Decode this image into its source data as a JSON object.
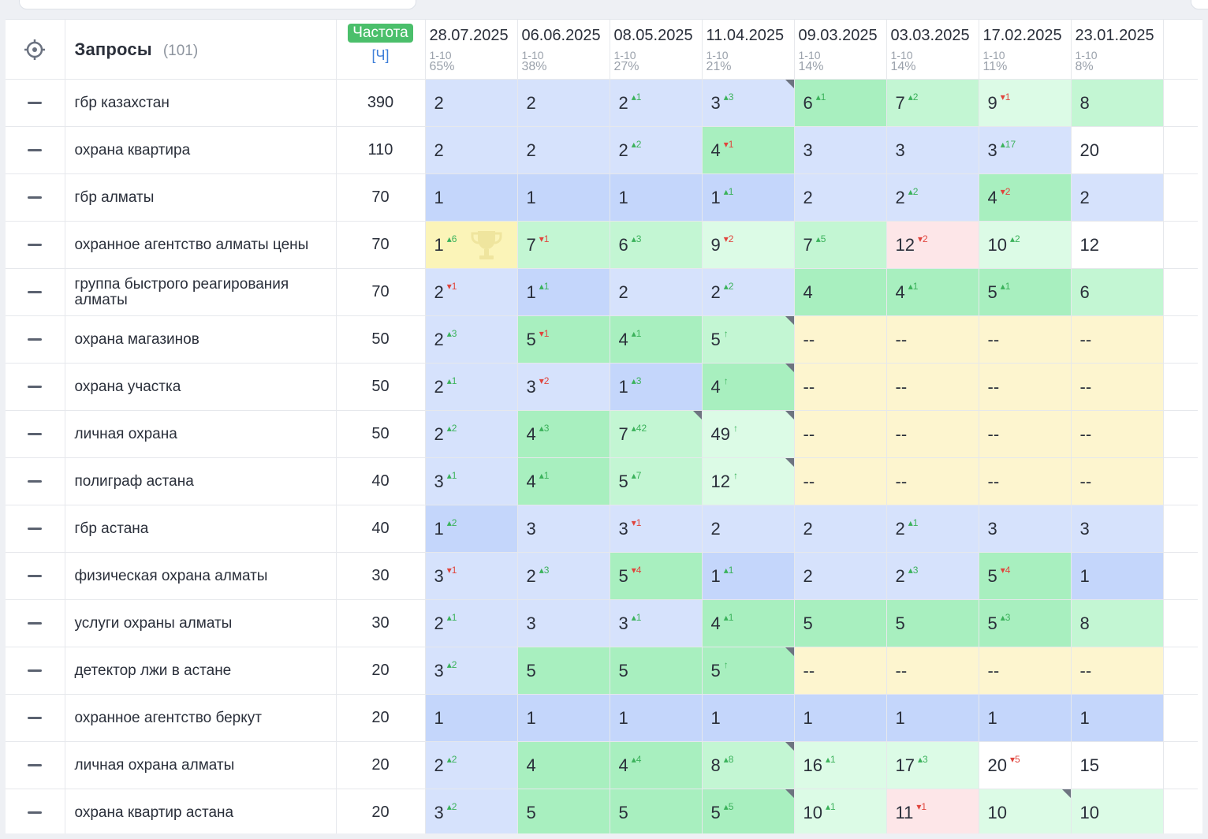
{
  "header": {
    "queries_title": "Запросы",
    "queries_count": "(101)",
    "freq_badge": "Частота",
    "freq_mode": "[Ч]"
  },
  "dates": [
    {
      "date": "28.07.2025",
      "range": "1-10",
      "pct": "65%"
    },
    {
      "date": "06.06.2025",
      "range": "1-10",
      "pct": "38%"
    },
    {
      "date": "08.05.2025",
      "range": "1-10",
      "pct": "27%"
    },
    {
      "date": "11.04.2025",
      "range": "1-10",
      "pct": "21%"
    },
    {
      "date": "09.03.2025",
      "range": "1-10",
      "pct": "14%"
    },
    {
      "date": "03.03.2025",
      "range": "1-10",
      "pct": "14%"
    },
    {
      "date": "17.02.2025",
      "range": "1-10",
      "pct": "11%"
    },
    {
      "date": "23.01.2025",
      "range": "1-10",
      "pct": "8%"
    }
  ],
  "rows": [
    {
      "query": "гбр казахстан",
      "freq": "390",
      "cells": [
        {
          "pos": "2",
          "bg": "top3"
        },
        {
          "pos": "2",
          "bg": "top3"
        },
        {
          "pos": "2",
          "d": "1",
          "dir": "up",
          "bg": "top3"
        },
        {
          "pos": "3",
          "d": "3",
          "dir": "up",
          "bg": "top3",
          "corner": true
        },
        {
          "pos": "6",
          "d": "1",
          "dir": "up",
          "bg": "top5"
        },
        {
          "pos": "7",
          "d": "2",
          "dir": "up",
          "bg": "top10"
        },
        {
          "pos": "9",
          "d": "1",
          "dir": "down",
          "bg": "top20"
        },
        {
          "pos": "8",
          "bg": "top10"
        }
      ]
    },
    {
      "query": "охрана квартира",
      "freq": "110",
      "cells": [
        {
          "pos": "2",
          "bg": "top3"
        },
        {
          "pos": "2",
          "bg": "top3"
        },
        {
          "pos": "2",
          "d": "2",
          "dir": "up",
          "bg": "top3"
        },
        {
          "pos": "4",
          "d": "1",
          "dir": "down",
          "bg": "top5"
        },
        {
          "pos": "3",
          "bg": "top3"
        },
        {
          "pos": "3",
          "bg": "top3"
        },
        {
          "pos": "3",
          "d": "17",
          "dir": "up",
          "bg": "top3"
        },
        {
          "pos": "20",
          "bg": "white"
        }
      ]
    },
    {
      "query": "гбр алматы",
      "freq": "70",
      "cells": [
        {
          "pos": "1",
          "bg": "top1"
        },
        {
          "pos": "1",
          "bg": "top1"
        },
        {
          "pos": "1",
          "bg": "top1"
        },
        {
          "pos": "1",
          "d": "1",
          "dir": "up",
          "bg": "top1"
        },
        {
          "pos": "2",
          "bg": "top3"
        },
        {
          "pos": "2",
          "d": "2",
          "dir": "up",
          "bg": "top3"
        },
        {
          "pos": "4",
          "d": "2",
          "dir": "down",
          "bg": "top5"
        },
        {
          "pos": "2",
          "bg": "top3"
        }
      ]
    },
    {
      "query": "охранное агентство алматы цены",
      "freq": "70",
      "cells": [
        {
          "pos": "1",
          "d": "6",
          "dir": "up",
          "bg": "gold",
          "trophy": true
        },
        {
          "pos": "7",
          "d": "1",
          "dir": "down",
          "bg": "top10"
        },
        {
          "pos": "6",
          "d": "3",
          "dir": "up",
          "bg": "top10"
        },
        {
          "pos": "9",
          "d": "2",
          "dir": "down",
          "bg": "top20"
        },
        {
          "pos": "7",
          "d": "5",
          "dir": "up",
          "bg": "top10"
        },
        {
          "pos": "12",
          "d": "2",
          "dir": "down",
          "bg": "bad"
        },
        {
          "pos": "10",
          "d": "2",
          "dir": "up",
          "bg": "top20"
        },
        {
          "pos": "12",
          "bg": "white"
        }
      ]
    },
    {
      "query": "группа быстрого реагирования алматы",
      "freq": "70",
      "cells": [
        {
          "pos": "2",
          "d": "1",
          "dir": "down",
          "bg": "top3"
        },
        {
          "pos": "1",
          "d": "1",
          "dir": "up",
          "bg": "top1"
        },
        {
          "pos": "2",
          "bg": "top3"
        },
        {
          "pos": "2",
          "d": "2",
          "dir": "up",
          "bg": "top3"
        },
        {
          "pos": "4",
          "bg": "top5"
        },
        {
          "pos": "4",
          "d": "1",
          "dir": "up",
          "bg": "top5"
        },
        {
          "pos": "5",
          "d": "1",
          "dir": "up",
          "bg": "top5"
        },
        {
          "pos": "6",
          "bg": "top10"
        }
      ]
    },
    {
      "query": "охрана магазинов",
      "freq": "50",
      "cells": [
        {
          "pos": "2",
          "d": "3",
          "dir": "up",
          "bg": "top3"
        },
        {
          "pos": "5",
          "d": "1",
          "dir": "down",
          "bg": "top5"
        },
        {
          "pos": "4",
          "d": "1",
          "dir": "up",
          "bg": "top5"
        },
        {
          "pos": "5",
          "d": "↑",
          "dir": "up",
          "bg": "top10",
          "corner": true
        },
        {
          "pos": "--",
          "bg": "none"
        },
        {
          "pos": "--",
          "bg": "none"
        },
        {
          "pos": "--",
          "bg": "none"
        },
        {
          "pos": "--",
          "bg": "none"
        }
      ]
    },
    {
      "query": "охрана участка",
      "freq": "50",
      "cells": [
        {
          "pos": "2",
          "d": "1",
          "dir": "up",
          "bg": "top3"
        },
        {
          "pos": "3",
          "d": "2",
          "dir": "down",
          "bg": "top3"
        },
        {
          "pos": "1",
          "d": "3",
          "dir": "up",
          "bg": "top1"
        },
        {
          "pos": "4",
          "d": "↑",
          "dir": "up",
          "bg": "top5",
          "corner": true
        },
        {
          "pos": "--",
          "bg": "none"
        },
        {
          "pos": "--",
          "bg": "none"
        },
        {
          "pos": "--",
          "bg": "none"
        },
        {
          "pos": "--",
          "bg": "none"
        }
      ]
    },
    {
      "query": "личная охрана",
      "freq": "50",
      "cells": [
        {
          "pos": "2",
          "d": "2",
          "dir": "up",
          "bg": "top3"
        },
        {
          "pos": "4",
          "d": "3",
          "dir": "up",
          "bg": "top5"
        },
        {
          "pos": "7",
          "d": "42",
          "dir": "up",
          "bg": "top10",
          "corner": true
        },
        {
          "pos": "49",
          "d": "↑",
          "dir": "up",
          "bg": "top20",
          "corner": true
        },
        {
          "pos": "--",
          "bg": "none"
        },
        {
          "pos": "--",
          "bg": "none"
        },
        {
          "pos": "--",
          "bg": "none"
        },
        {
          "pos": "--",
          "bg": "none"
        }
      ]
    },
    {
      "query": "полиграф астана",
      "freq": "40",
      "cells": [
        {
          "pos": "3",
          "d": "1",
          "dir": "up",
          "bg": "top3"
        },
        {
          "pos": "4",
          "d": "1",
          "dir": "up",
          "bg": "top5"
        },
        {
          "pos": "5",
          "d": "7",
          "dir": "up",
          "bg": "top10"
        },
        {
          "pos": "12",
          "d": "↑",
          "dir": "up",
          "bg": "top20",
          "corner": true
        },
        {
          "pos": "--",
          "bg": "none"
        },
        {
          "pos": "--",
          "bg": "none"
        },
        {
          "pos": "--",
          "bg": "none"
        },
        {
          "pos": "--",
          "bg": "none"
        }
      ]
    },
    {
      "query": "гбр астана",
      "freq": "40",
      "cells": [
        {
          "pos": "1",
          "d": "2",
          "dir": "up",
          "bg": "top1"
        },
        {
          "pos": "3",
          "bg": "top3"
        },
        {
          "pos": "3",
          "d": "1",
          "dir": "down",
          "bg": "top3"
        },
        {
          "pos": "2",
          "bg": "top3"
        },
        {
          "pos": "2",
          "bg": "top3"
        },
        {
          "pos": "2",
          "d": "1",
          "dir": "up",
          "bg": "top3"
        },
        {
          "pos": "3",
          "bg": "top3"
        },
        {
          "pos": "3",
          "bg": "top3"
        }
      ]
    },
    {
      "query": "физическая охрана алматы",
      "freq": "30",
      "cells": [
        {
          "pos": "3",
          "d": "1",
          "dir": "down",
          "bg": "top3"
        },
        {
          "pos": "2",
          "d": "3",
          "dir": "up",
          "bg": "top3"
        },
        {
          "pos": "5",
          "d": "4",
          "dir": "down",
          "bg": "top5"
        },
        {
          "pos": "1",
          "d": "1",
          "dir": "up",
          "bg": "top1"
        },
        {
          "pos": "2",
          "bg": "top3"
        },
        {
          "pos": "2",
          "d": "3",
          "dir": "up",
          "bg": "top3"
        },
        {
          "pos": "5",
          "d": "4",
          "dir": "down",
          "bg": "top5"
        },
        {
          "pos": "1",
          "bg": "top1"
        }
      ]
    },
    {
      "query": "услуги охраны алматы",
      "freq": "30",
      "cells": [
        {
          "pos": "2",
          "d": "1",
          "dir": "up",
          "bg": "top3"
        },
        {
          "pos": "3",
          "bg": "top3"
        },
        {
          "pos": "3",
          "d": "1",
          "dir": "up",
          "bg": "top3"
        },
        {
          "pos": "4",
          "d": "1",
          "dir": "up",
          "bg": "top5"
        },
        {
          "pos": "5",
          "bg": "top5"
        },
        {
          "pos": "5",
          "bg": "top5"
        },
        {
          "pos": "5",
          "d": "3",
          "dir": "up",
          "bg": "top5"
        },
        {
          "pos": "8",
          "bg": "top10"
        }
      ]
    },
    {
      "query": "детектор лжи в астане",
      "freq": "20",
      "cells": [
        {
          "pos": "3",
          "d": "2",
          "dir": "up",
          "bg": "top3"
        },
        {
          "pos": "5",
          "bg": "top5"
        },
        {
          "pos": "5",
          "bg": "top5"
        },
        {
          "pos": "5",
          "d": "↑",
          "dir": "up",
          "bg": "top5",
          "corner": true
        },
        {
          "pos": "--",
          "bg": "none"
        },
        {
          "pos": "--",
          "bg": "none"
        },
        {
          "pos": "--",
          "bg": "none"
        },
        {
          "pos": "--",
          "bg": "none"
        }
      ]
    },
    {
      "query": "охранное агентство беркут",
      "freq": "20",
      "cells": [
        {
          "pos": "1",
          "bg": "top1"
        },
        {
          "pos": "1",
          "bg": "top1"
        },
        {
          "pos": "1",
          "bg": "top1"
        },
        {
          "pos": "1",
          "bg": "top1"
        },
        {
          "pos": "1",
          "bg": "top1"
        },
        {
          "pos": "1",
          "bg": "top1"
        },
        {
          "pos": "1",
          "bg": "top1"
        },
        {
          "pos": "1",
          "bg": "top1"
        }
      ]
    },
    {
      "query": "личная охрана алматы",
      "freq": "20",
      "cells": [
        {
          "pos": "2",
          "d": "2",
          "dir": "up",
          "bg": "top3"
        },
        {
          "pos": "4",
          "bg": "top5"
        },
        {
          "pos": "4",
          "d": "4",
          "dir": "up",
          "bg": "top5"
        },
        {
          "pos": "8",
          "d": "8",
          "dir": "up",
          "bg": "top10",
          "corner": true
        },
        {
          "pos": "16",
          "d": "1",
          "dir": "up",
          "bg": "top20"
        },
        {
          "pos": "17",
          "d": "3",
          "dir": "up",
          "bg": "top20"
        },
        {
          "pos": "20",
          "d": "5",
          "dir": "down",
          "bg": "white"
        },
        {
          "pos": "15",
          "bg": "white"
        }
      ]
    },
    {
      "query": "охрана квартир астана",
      "freq": "20",
      "cells": [
        {
          "pos": "3",
          "d": "2",
          "dir": "up",
          "bg": "top3"
        },
        {
          "pos": "5",
          "bg": "top5"
        },
        {
          "pos": "5",
          "bg": "top5"
        },
        {
          "pos": "5",
          "d": "5",
          "dir": "up",
          "bg": "top5",
          "corner": true
        },
        {
          "pos": "10",
          "d": "1",
          "dir": "up",
          "bg": "top20"
        },
        {
          "pos": "11",
          "d": "1",
          "dir": "down",
          "bg": "bad"
        },
        {
          "pos": "10",
          "bg": "top20",
          "corner": true
        },
        {
          "pos": "10",
          "bg": "top20"
        }
      ]
    }
  ],
  "colors": {
    "top1": "#c4d6fb",
    "top3": "#d6e2fc",
    "top5": "#a8efbf",
    "top10": "#c3f6d3",
    "top20": "#dcfbe6",
    "none": "#fdf5cf",
    "bad": "#fde6e8",
    "gold": "#fbf4b8",
    "white": "#ffffff",
    "up": "#3bb25b",
    "down": "#e0443c",
    "freq_badge": "#4bbf6b",
    "link": "#3f7fd9"
  }
}
